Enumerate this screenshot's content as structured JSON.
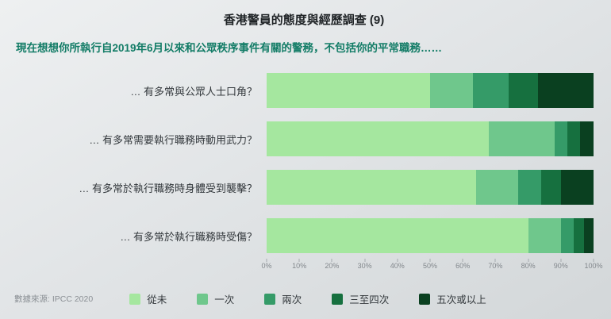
{
  "title": "香港警員的態度與經歷調查 (9)",
  "subtitle": "現在想想你所執行自2019年6月以來和公眾秩序事件有關的警務，不包括你的平常職務……",
  "source": "數據來源: IPCC 2020",
  "chart_data": {
    "type": "bar",
    "orientation": "horizontal",
    "stacked": true,
    "grid": false,
    "legend_position": "bottom",
    "xlim": [
      0,
      100
    ],
    "x_tick_labels": [
      "0%",
      "10%",
      "20%",
      "30%",
      "40%",
      "50%",
      "60%",
      "70%",
      "80%",
      "90%",
      "100%"
    ],
    "categories": [
      "… 有多常與公眾人士口角？",
      "… 有多常需要執行職務時動用武力？",
      "… 有多常於執行職務時身體受到襲擊？",
      "… 有多常於執行職務時受傷？"
    ],
    "series": [
      {
        "name": "從未",
        "color": "#a5e79f",
        "values": [
          50,
          68,
          64,
          80
        ]
      },
      {
        "name": "一次",
        "color": "#6fc78c",
        "values": [
          13,
          20,
          13,
          10
        ]
      },
      {
        "name": "兩次",
        "color": "#359b68",
        "values": [
          11,
          4,
          7,
          4
        ]
      },
      {
        "name": "三至四次",
        "color": "#16703f",
        "values": [
          9,
          4,
          6,
          3
        ]
      },
      {
        "name": "五次或以上",
        "color": "#0a4020",
        "values": [
          17,
          4,
          10,
          3
        ]
      }
    ]
  }
}
